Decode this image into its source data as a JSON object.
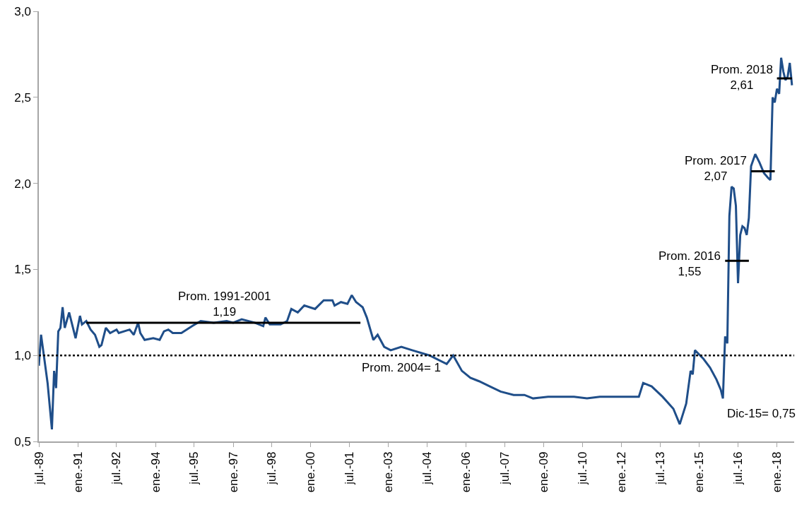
{
  "chart_data": {
    "type": "line",
    "x": [
      "1989-07",
      "1989-08",
      "1989-11",
      "1990-01",
      "1990-02",
      "1990-03",
      "1990-04",
      "1990-05",
      "1990-06",
      "1990-07",
      "1990-09",
      "1990-12",
      "1991-02",
      "1991-03",
      "1991-05",
      "1991-07",
      "1991-09",
      "1991-11",
      "1991-12",
      "1992-02",
      "1992-04",
      "1992-07",
      "1992-08",
      "1993-01",
      "1993-03",
      "1993-05",
      "1993-06",
      "1993-08",
      "1993-12",
      "1994-03",
      "1994-05",
      "1994-07",
      "1994-09",
      "1995-01",
      "1995-06",
      "1995-10",
      "1996-04",
      "1996-10",
      "1997-01",
      "1997-05",
      "1997-11",
      "1998-03",
      "1998-04",
      "1998-06",
      "1998-11",
      "1999-02",
      "1999-04",
      "1999-07",
      "1999-10",
      "2000-03",
      "2000-07",
      "2000-11",
      "2000-12",
      "2001-03",
      "2001-06",
      "2001-08",
      "2001-10",
      "2002-01",
      "2002-03",
      "2002-06",
      "2002-08",
      "2002-11",
      "2003-02",
      "2003-07",
      "2003-12",
      "2004-08",
      "2005-04",
      "2005-07",
      "2005-11",
      "2006-03",
      "2006-07",
      "2006-12",
      "2007-05",
      "2007-11",
      "2008-04",
      "2008-08",
      "2009-03",
      "2009-09",
      "2010-03",
      "2010-09",
      "2011-03",
      "2011-09",
      "2012-03",
      "2012-09",
      "2012-11",
      "2013-03",
      "2013-08",
      "2014-01",
      "2014-04",
      "2014-07",
      "2014-09",
      "2014-10",
      "2014-11",
      "2015-03",
      "2015-06",
      "2015-09",
      "2015-11",
      "2015-12",
      "2016-01",
      "2016-02",
      "2016-03",
      "2016-04",
      "2016-05",
      "2016-06",
      "2016-07",
      "2016-08",
      "2016-09",
      "2016-10",
      "2016-11",
      "2016-12",
      "2017-01",
      "2017-03",
      "2017-05",
      "2017-07",
      "2017-09",
      "2017-10",
      "2017-11",
      "2017-12",
      "2018-01",
      "2018-02",
      "2018-03",
      "2018-04",
      "2018-05",
      "2018-06",
      "2018-07",
      "2018-08"
    ],
    "series": [
      {
        "color": "#1f4e89",
        "values": [
          0.94,
          1.12,
          0.84,
          0.57,
          0.91,
          0.81,
          1.14,
          1.16,
          1.28,
          1.16,
          1.25,
          1.1,
          1.23,
          1.18,
          1.2,
          1.15,
          1.12,
          1.05,
          1.06,
          1.16,
          1.13,
          1.15,
          1.13,
          1.15,
          1.12,
          1.19,
          1.13,
          1.09,
          1.1,
          1.09,
          1.14,
          1.15,
          1.13,
          1.13,
          1.17,
          1.2,
          1.19,
          1.2,
          1.19,
          1.21,
          1.19,
          1.17,
          1.22,
          1.18,
          1.18,
          1.2,
          1.27,
          1.25,
          1.29,
          1.27,
          1.32,
          1.32,
          1.29,
          1.31,
          1.3,
          1.35,
          1.31,
          1.28,
          1.22,
          1.09,
          1.12,
          1.05,
          1.03,
          1.05,
          1.03,
          1.0,
          0.95,
          1.0,
          0.91,
          0.87,
          0.85,
          0.82,
          0.79,
          0.77,
          0.77,
          0.75,
          0.76,
          0.76,
          0.76,
          0.75,
          0.76,
          0.76,
          0.76,
          0.76,
          0.84,
          0.82,
          0.76,
          0.69,
          0.6,
          0.72,
          0.91,
          0.89,
          1.03,
          0.98,
          0.93,
          0.86,
          0.8,
          0.75,
          1.11,
          1.07,
          1.81,
          1.98,
          1.97,
          1.87,
          1.42,
          1.7,
          1.75,
          1.74,
          1.7,
          1.8,
          2.1,
          2.17,
          2.12,
          2.06,
          2.03,
          2.02,
          2.5,
          2.47,
          2.55,
          2.52,
          2.73,
          2.65,
          2.6,
          2.62,
          2.7,
          2.57
        ]
      },
      {
        "color": "#000000",
        "x": [
          "1991-05",
          "2001-12"
        ],
        "values": [
          1.19,
          1.19
        ]
      },
      {
        "color": "#000000",
        "x": [
          "2016-01",
          "2016-12"
        ],
        "values": [
          1.55,
          1.55
        ]
      },
      {
        "color": "#000000",
        "x": [
          "2017-01",
          "2017-12"
        ],
        "values": [
          2.07,
          2.07
        ]
      },
      {
        "color": "#000000",
        "x": [
          "2018-01",
          "2018-08"
        ],
        "values": [
          2.61,
          2.61
        ]
      }
    ],
    "annotations": [
      {
        "text": "Prom. 1991-2001\n1,19",
        "x": "1996-09",
        "y": 1.19
      },
      {
        "text": "Prom. 2016\n1,55",
        "x": "2016-01",
        "y": 1.55
      },
      {
        "text": "Prom. 2017\n2,07",
        "x": "2017-01",
        "y": 2.07
      },
      {
        "text": "Prom. 2018\n2,61",
        "x": "2018-01",
        "y": 2.61
      },
      {
        "text": "Dic-15= 0,75",
        "x": "2015-12",
        "y": 0.75
      }
    ],
    "ref_lines": [
      {
        "axis": "y",
        "value": 1,
        "label": "Prom. 2004= 1",
        "color": "#000000",
        "line_style": "dotted"
      }
    ],
    "xlim": [
      "1989-07",
      "2018-09"
    ],
    "xticks": [
      {
        "value": "1989-07",
        "label": "jul.-89"
      },
      {
        "value": "1991-01",
        "label": "ene.-91"
      },
      {
        "value": "1992-07",
        "label": "jul.-92"
      },
      {
        "value": "1994-01",
        "label": "ene.-94"
      },
      {
        "value": "1995-07",
        "label": "jul.-95"
      },
      {
        "value": "1997-01",
        "label": "ene.-97"
      },
      {
        "value": "1998-07",
        "label": "jul.-98"
      },
      {
        "value": "2000-01",
        "label": "ene.-00"
      },
      {
        "value": "2001-07",
        "label": "jul.-01"
      },
      {
        "value": "2003-01",
        "label": "ene.-03"
      },
      {
        "value": "2004-07",
        "label": "jul.-04"
      },
      {
        "value": "2006-01",
        "label": "ene.-06"
      },
      {
        "value": "2007-07",
        "label": "jul.-07"
      },
      {
        "value": "2009-01",
        "label": "ene.-09"
      },
      {
        "value": "2010-07",
        "label": "jul.-10"
      },
      {
        "value": "2012-01",
        "label": "ene.-12"
      },
      {
        "value": "2013-07",
        "label": "jul.-13"
      },
      {
        "value": "2015-01",
        "label": "ene.-15"
      },
      {
        "value": "2016-07",
        "label": "jul.-16"
      },
      {
        "value": "2018-01",
        "label": "ene.-18"
      }
    ],
    "ylim": [
      0.5,
      3.0
    ],
    "yticks": [
      {
        "value": 0.5,
        "label": "0,5"
      },
      {
        "value": 1.0,
        "label": "1,0"
      },
      {
        "value": 1.5,
        "label": "1,5"
      },
      {
        "value": 2.0,
        "label": "2,0"
      },
      {
        "value": 2.5,
        "label": "2,5"
      },
      {
        "value": 3.0,
        "label": "3,0"
      }
    ],
    "marker": "none",
    "line_style": "solid"
  }
}
